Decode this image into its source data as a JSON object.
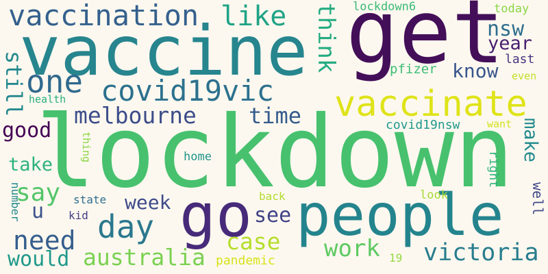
{
  "words": {
    "lockdown": "lockdown",
    "get": "get",
    "vaccine": "vaccine",
    "people": "people",
    "go": "go",
    "vaccinate": "vaccinate",
    "vaccination": "vaccination",
    "covid19vic": "covid19vic",
    "melbourne": "melbourne",
    "like": "like",
    "one": "one",
    "day": "day",
    "need": "need",
    "australia": "australia",
    "would": "would",
    "say": "say",
    "case": "case",
    "work": "work",
    "victoria": "victoria",
    "week": "week",
    "time": "time",
    "good": "good",
    "take": "take",
    "see": "see",
    "u": "u",
    "nsw": "nsw",
    "year": "year",
    "know": "know",
    "covid19nsw": "covid19nsw",
    "pfizer": "pfizer",
    "lockdown6": "lockdown6",
    "today": "today",
    "last": "last",
    "even": "even",
    "health": "health",
    "home": "home",
    "state": "state",
    "kid": "kid",
    "back": "back",
    "look": "look",
    "pandemic": "pandemic",
    "nineteen": "19",
    "want": "want",
    "think": "think",
    "still": "still",
    "make": "make",
    "well": "well",
    "right": "right",
    "number": "number",
    "thing": "thing"
  },
  "colors": {
    "background": "#fcf8ef"
  }
}
